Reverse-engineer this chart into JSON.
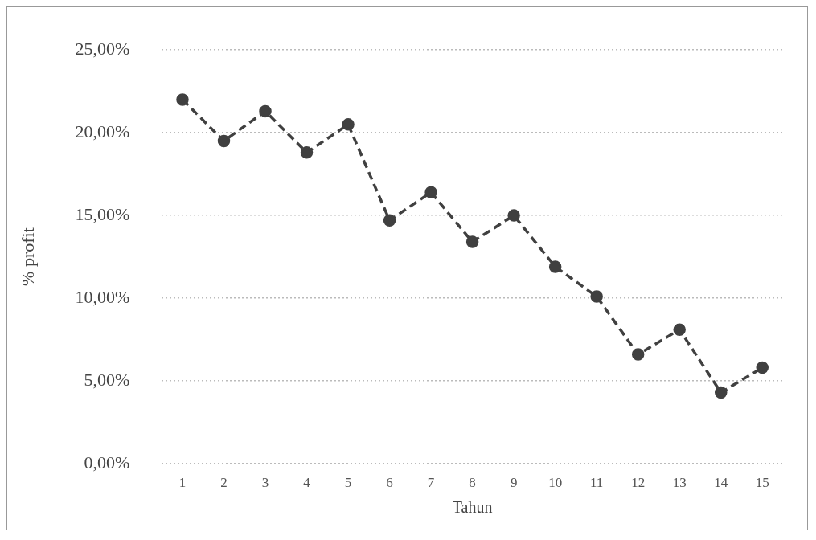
{
  "chart_data": {
    "type": "line",
    "xlabel": "Tahun",
    "ylabel": "% profit",
    "categories": [
      "1",
      "2",
      "3",
      "4",
      "5",
      "6",
      "7",
      "8",
      "9",
      "10",
      "11",
      "12",
      "13",
      "14",
      "15"
    ],
    "series": [
      {
        "color": "#404040",
        "values": [
          22.0,
          19.5,
          21.3,
          18.8,
          20.5,
          14.7,
          16.4,
          13.4,
          15.0,
          11.9,
          10.1,
          6.6,
          8.1,
          4.3,
          5.8
        ]
      }
    ],
    "ylim": [
      0,
      25
    ],
    "yticks": [
      {
        "value": 0,
        "label": "0,00%"
      },
      {
        "value": 5,
        "label": "5,00%"
      },
      {
        "value": 10,
        "label": "10,00%"
      },
      {
        "value": 15,
        "label": "15,00%"
      },
      {
        "value": 20,
        "label": "20,00%"
      },
      {
        "value": 25,
        "label": "25,00%"
      }
    ],
    "grid": "y",
    "legend": false,
    "marker": "circle",
    "line_style": "dashed"
  }
}
